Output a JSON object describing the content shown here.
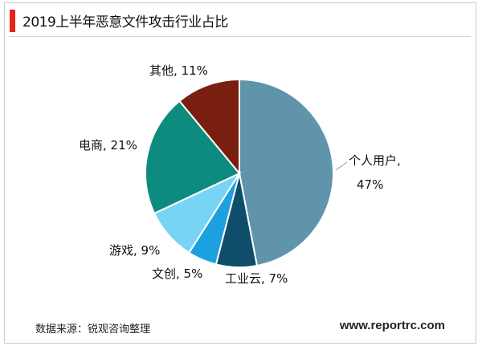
{
  "header": {
    "title": "2019上半年恶意文件攻击行业占比",
    "accent_color": "#e8231c"
  },
  "chart_data": {
    "type": "pie",
    "title": "2019上半年恶意文件攻击行业占比",
    "slices": [
      {
        "label": "个人用户",
        "value": 47,
        "display": "个人用户,",
        "display2": "47%",
        "color": "#6094ab"
      },
      {
        "label": "工业云",
        "value": 7,
        "display": "工业云, 7%",
        "color": "#0f4e6b"
      },
      {
        "label": "文创",
        "value": 5,
        "display": "文创, 5%",
        "color": "#1da0df"
      },
      {
        "label": "游戏",
        "value": 9,
        "display": "游戏, 9%",
        "color": "#77d4f5"
      },
      {
        "label": "电商",
        "value": 21,
        "display": "电商, 21%",
        "color": "#0d8b7e"
      },
      {
        "label": "其他",
        "value": 11,
        "display": "其他, 11%",
        "color": "#7a1f0f"
      }
    ],
    "start_angle_deg": 0,
    "direction": "clockwise",
    "legend": "none"
  },
  "footer": {
    "source": "数据来源：锐观咨询整理",
    "website": "www.reportrc.com"
  }
}
